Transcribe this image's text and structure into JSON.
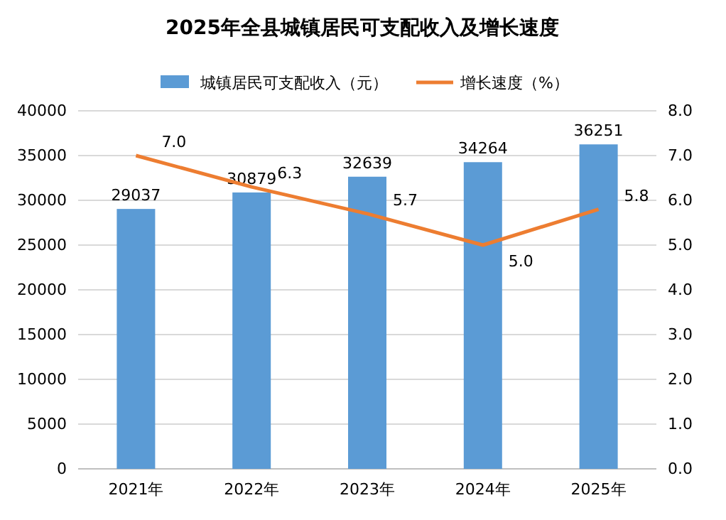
{
  "chart_data": {
    "type": "bar",
    "title": "2025年全县城镇居民可支配收入及增长速度",
    "categories": [
      "2021年",
      "2022年",
      "2023年",
      "2024年",
      "2025年"
    ],
    "series": [
      {
        "name": "城镇居民可支配收入（元）",
        "color": "#5b9bd5",
        "values": [
          29037,
          30879,
          32639,
          34264,
          36251
        ],
        "value_labels": [
          "29037",
          "30879",
          "32639",
          "34264",
          "36251"
        ]
      },
      {
        "name": "增长速度（%）",
        "type": "line",
        "axis": "y2",
        "color": "#ed7d31",
        "values": [
          7.0,
          6.3,
          5.7,
          5.0,
          5.8
        ],
        "value_labels": [
          "7.0",
          "6.3",
          "5.7",
          "5.0",
          "5.8"
        ]
      }
    ],
    "ylim": [
      0,
      40000
    ],
    "yticks": [
      0,
      5000,
      10000,
      15000,
      20000,
      25000,
      30000,
      35000,
      40000
    ],
    "y2lim": [
      0,
      8
    ],
    "y2ticks": [
      {
        "value": 0,
        "label": "0.0"
      },
      {
        "value": 1,
        "label": "1.0"
      },
      {
        "value": 2,
        "label": "2.0"
      },
      {
        "value": 3,
        "label": "3.0"
      },
      {
        "value": 4,
        "label": "4.0"
      },
      {
        "value": 5,
        "label": "5.0"
      },
      {
        "value": 6,
        "label": "6.0"
      },
      {
        "value": 7,
        "label": "7.0"
      },
      {
        "value": 8,
        "label": "8.0"
      }
    ],
    "grid": "y",
    "legend": "top",
    "marker": "none",
    "line_style": "solid"
  }
}
